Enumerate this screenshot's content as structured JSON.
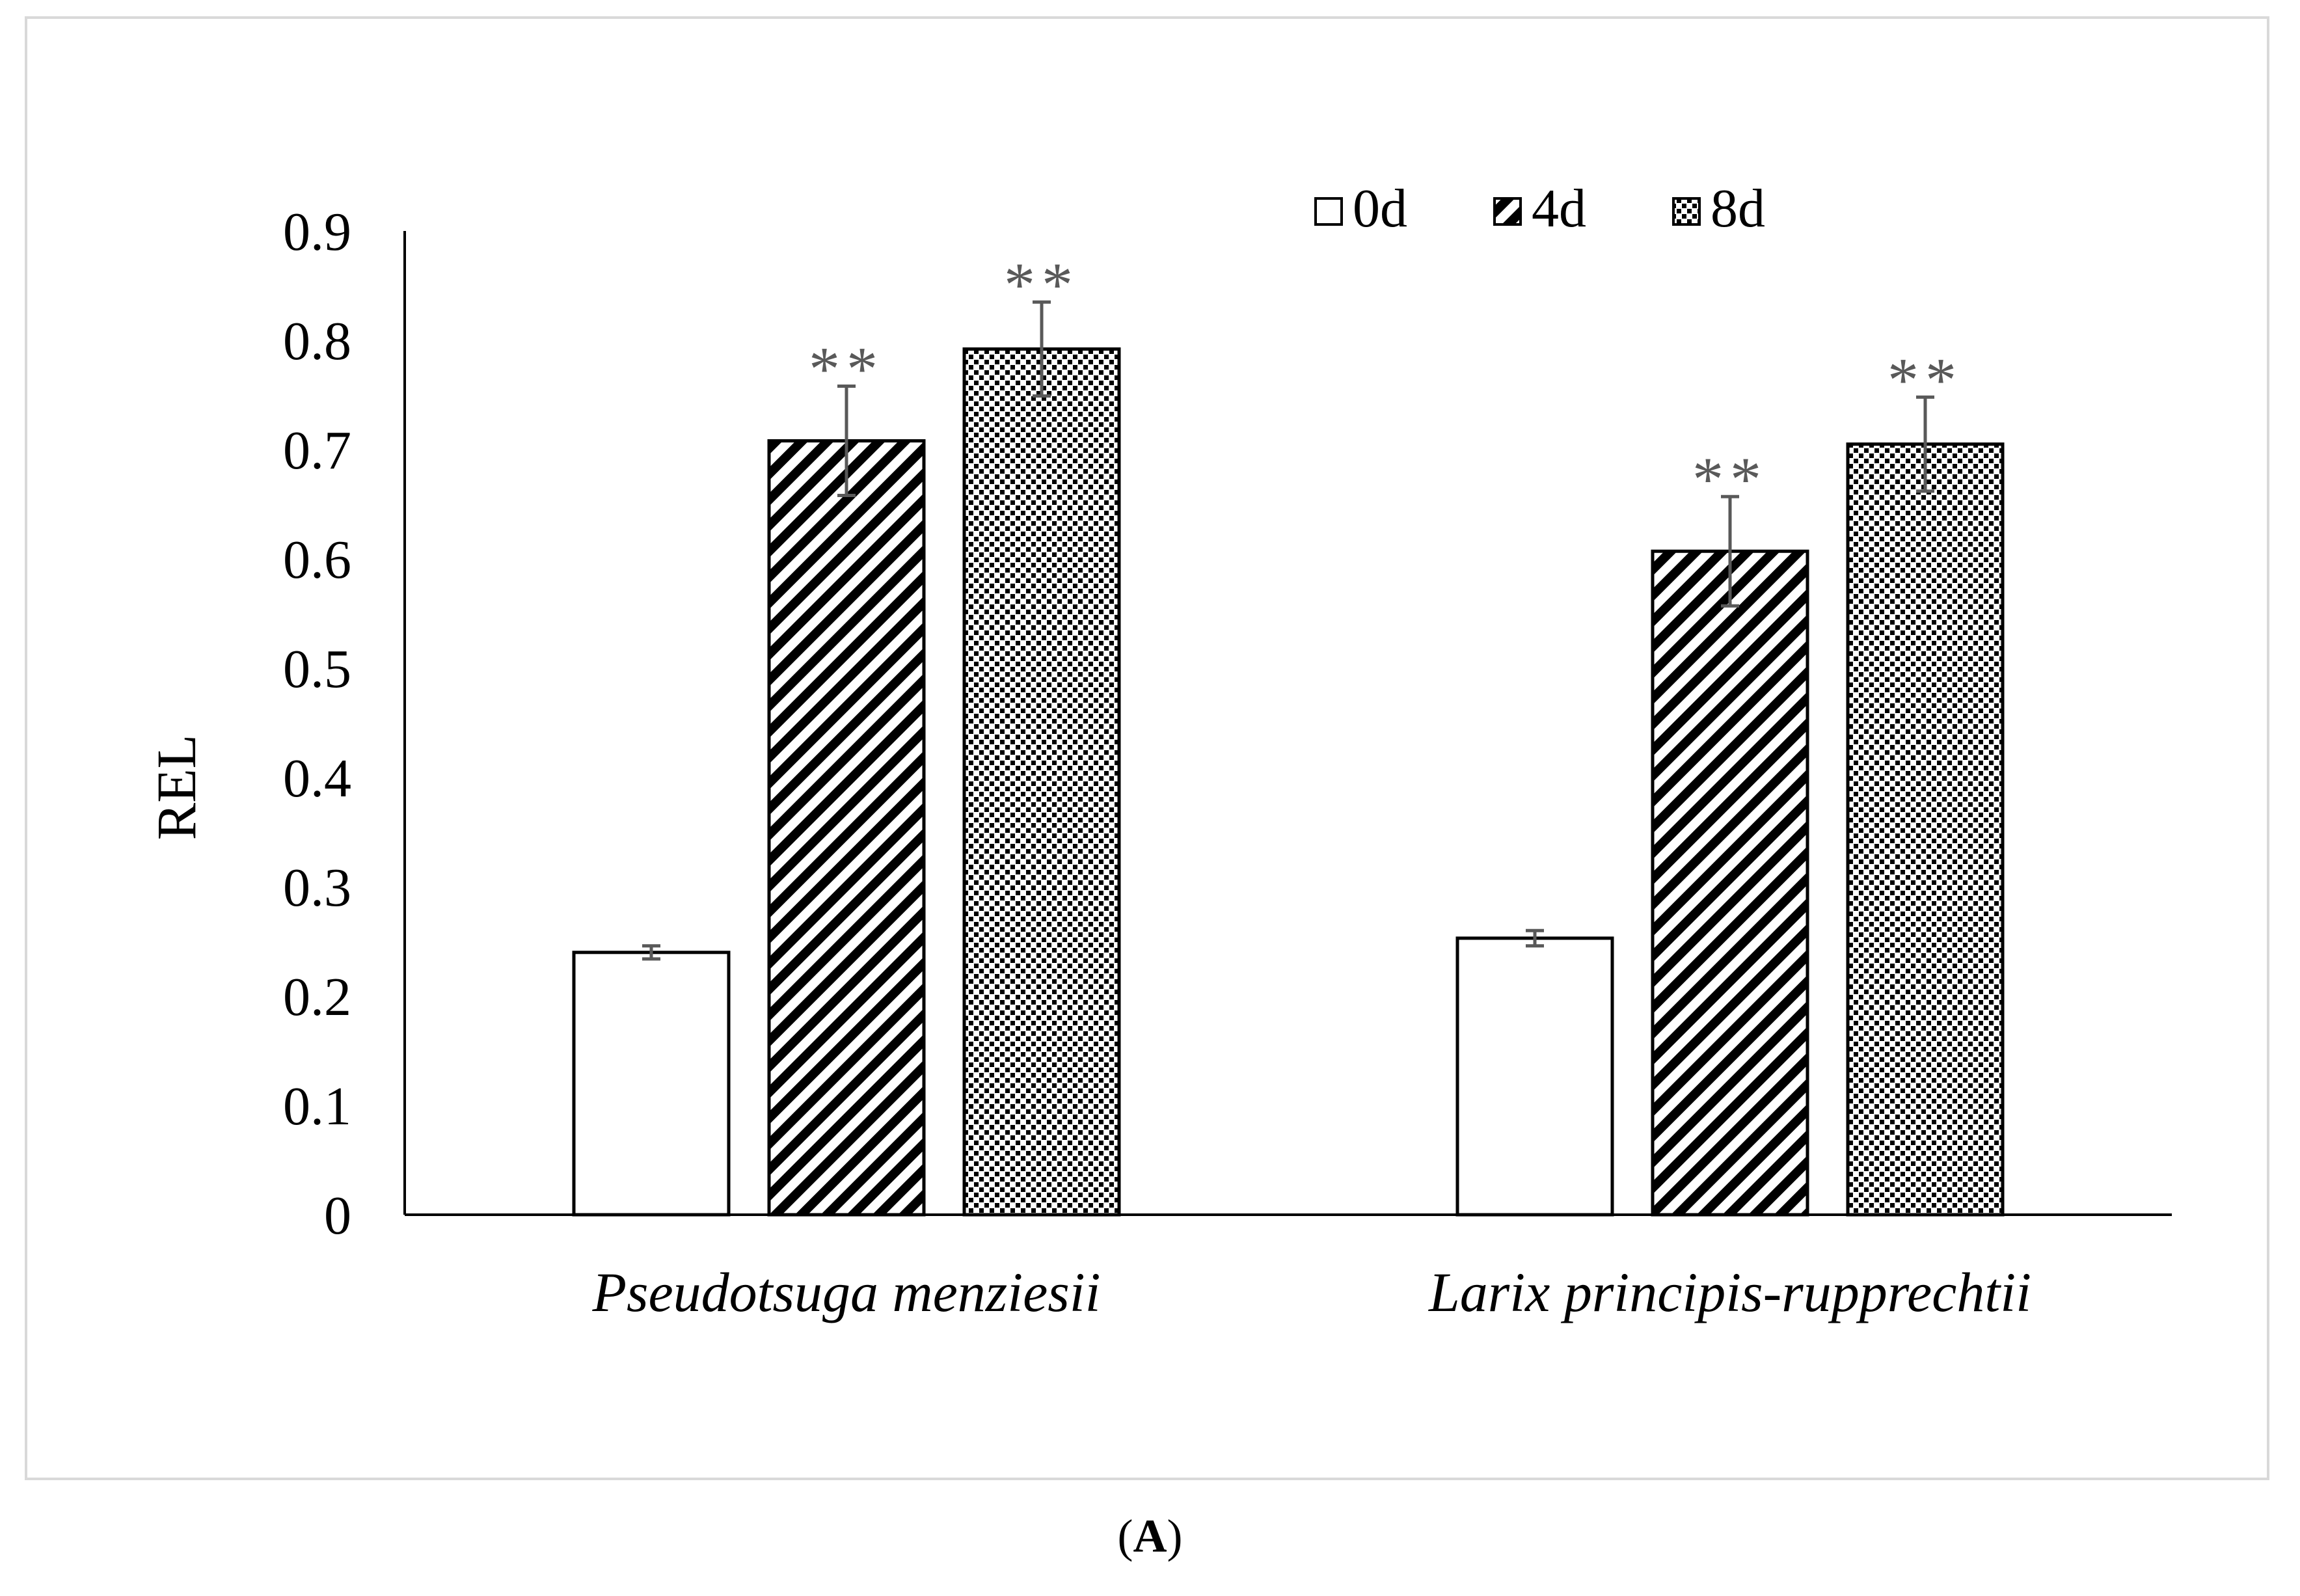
{
  "chart_data": {
    "type": "bar",
    "title": "",
    "ylabel": "REL",
    "xlabel": "",
    "ylim": [
      0,
      0.9
    ],
    "yticks": [
      "0",
      "0.1",
      "0.2",
      "0.3",
      "0.4",
      "0.5",
      "0.6",
      "0.7",
      "0.8",
      "0.9"
    ],
    "categories": [
      "Pseudotsuga menziesii",
      "Larix principis-rupprechtii"
    ],
    "series": [
      {
        "name": "0d",
        "pattern": "blank",
        "values": [
          0.24,
          0.253
        ],
        "errors": [
          0.006,
          0.007
        ],
        "annotations": [
          "",
          ""
        ]
      },
      {
        "name": "4d",
        "pattern": "diagonal-stripes",
        "values": [
          0.708,
          0.607
        ],
        "errors": [
          0.05,
          0.05
        ],
        "annotations": [
          "**",
          "**"
        ]
      },
      {
        "name": "8d",
        "pattern": "dots",
        "values": [
          0.792,
          0.705
        ],
        "errors": [
          0.043,
          0.043
        ],
        "annotations": [
          "**",
          "**"
        ]
      }
    ],
    "legend_position": "top-right",
    "grid": false
  },
  "panel": {
    "open": "(",
    "label": "A",
    "close": ")"
  },
  "colors": {
    "bar_stroke": "#000000",
    "error_bar": "#595959",
    "annotation": "#595959",
    "frame": "#d9d9d9"
  }
}
